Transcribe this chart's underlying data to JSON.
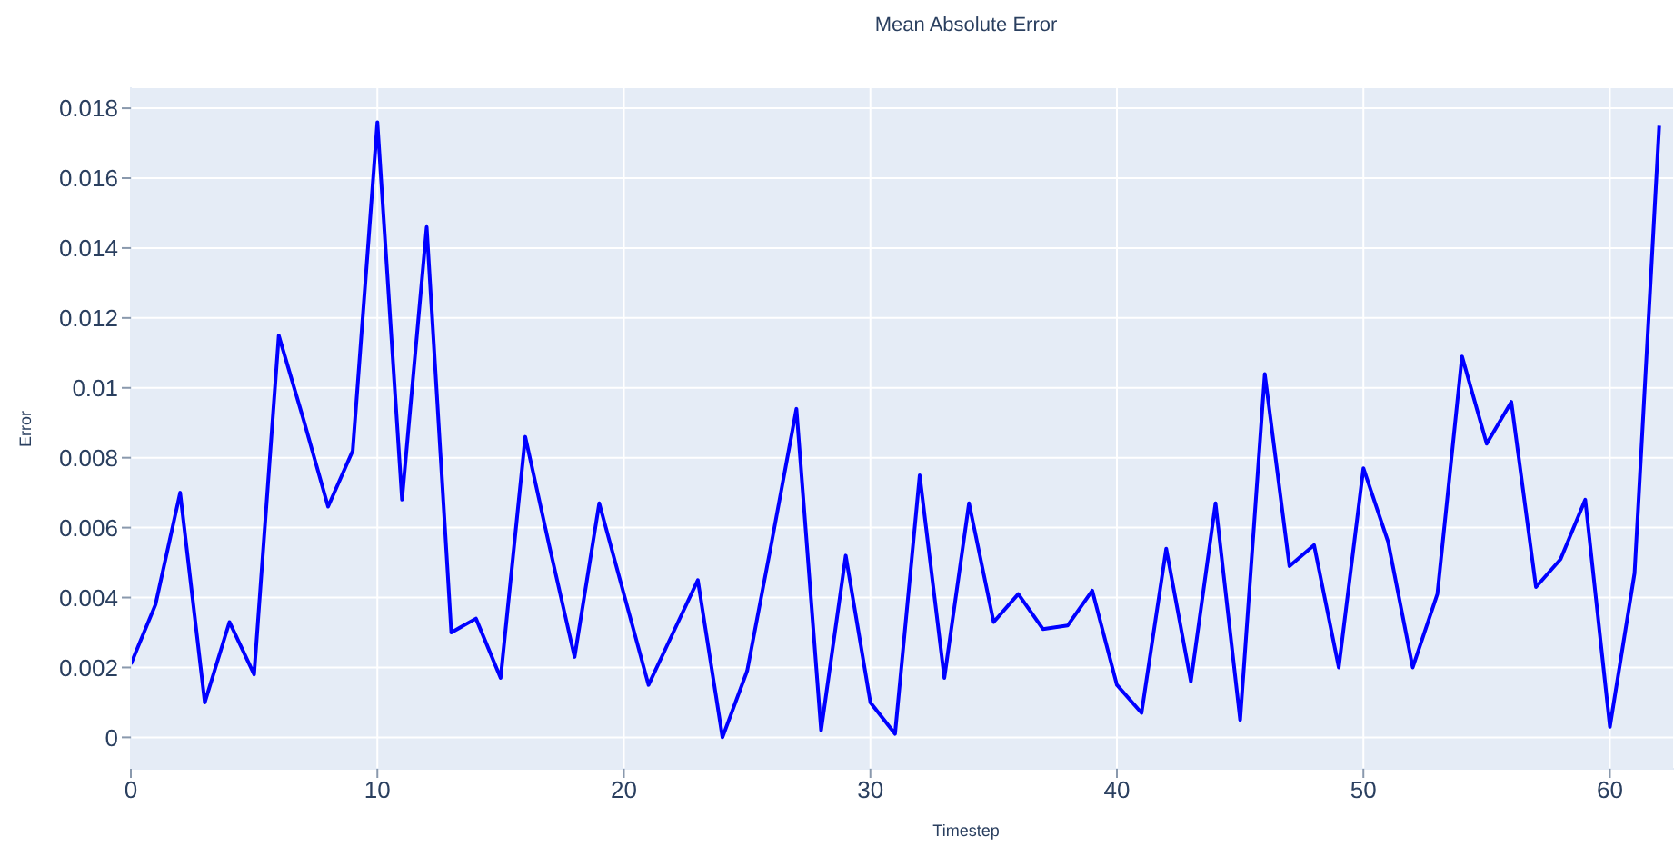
{
  "chart_data": {
    "type": "line",
    "title": "Mean Absolute Error",
    "xlabel": "Timestep",
    "ylabel": "Error",
    "x": [
      0,
      1,
      2,
      3,
      4,
      5,
      6,
      7,
      8,
      9,
      10,
      11,
      12,
      13,
      14,
      15,
      16,
      17,
      18,
      19,
      20,
      21,
      22,
      23,
      24,
      25,
      26,
      27,
      28,
      29,
      30,
      31,
      32,
      33,
      34,
      35,
      36,
      37,
      38,
      39,
      40,
      41,
      42,
      43,
      44,
      45,
      46,
      47,
      48,
      49,
      50,
      51,
      52,
      53,
      54,
      55,
      56,
      57,
      58,
      59,
      60,
      61,
      62
    ],
    "series": [
      {
        "color": "#0000ff",
        "values": [
          0.0021,
          0.0038,
          0.007,
          0.001,
          0.0033,
          0.0018,
          0.0115,
          0.0091,
          0.0066,
          0.0082,
          0.0176,
          0.0068,
          0.0146,
          0.003,
          0.0034,
          0.0017,
          0.0086,
          0.0054,
          0.0023,
          0.0067,
          0.0041,
          0.0015,
          0.003,
          0.0045,
          0.0,
          0.0019,
          0.0056,
          0.0094,
          0.0002,
          0.0052,
          0.001,
          0.0001,
          0.0075,
          0.0017,
          0.0067,
          0.0033,
          0.0041,
          0.0031,
          0.0032,
          0.0042,
          0.0015,
          0.0007,
          0.0054,
          0.0016,
          0.0067,
          0.0005,
          0.0104,
          0.0049,
          0.0055,
          0.002,
          0.0077,
          0.0056,
          0.002,
          0.0041,
          0.0109,
          0.0084,
          0.0096,
          0.0043,
          0.0051,
          0.0068,
          0.0003,
          0.0047,
          0.0175
        ]
      }
    ],
    "xlim": [
      0,
      62.6
    ],
    "ylim": [
      -0.0009,
      0.0186
    ],
    "xticks": [
      0,
      10,
      20,
      30,
      40,
      50,
      60
    ],
    "yticks": [
      0,
      0.002,
      0.004,
      0.006,
      0.008,
      0.01,
      0.012,
      0.014,
      0.016,
      0.018
    ],
    "grid": true,
    "marker": "none",
    "line_style": "solid"
  }
}
